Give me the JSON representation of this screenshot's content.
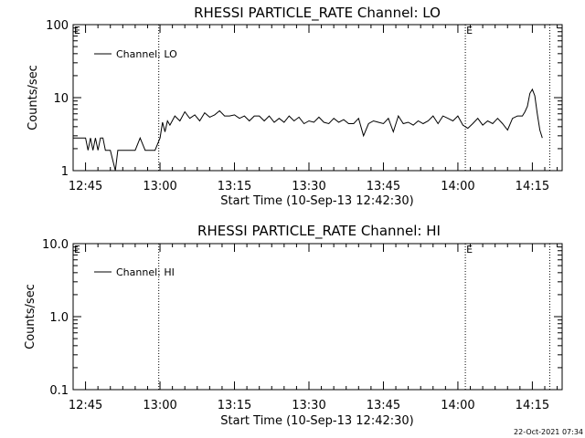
{
  "footer_date": "22-Oct-2021 07:34",
  "colors": {
    "background": "#ffffff",
    "ink": "#000000"
  },
  "chart_data": [
    {
      "type": "line",
      "title": "RHESSI PARTICLE_RATE Channel: LO",
      "xlabel": "Start Time (10-Sep-13 12:42:30)",
      "ylabel": "Counts/sec",
      "yscale": "log",
      "ylim": [
        1,
        100
      ],
      "xlim": [
        "12:42:30",
        "14:21:00"
      ],
      "xticks": [
        "12:45",
        "13:00",
        "13:15",
        "13:30",
        "13:45",
        "14:00",
        "14:15"
      ],
      "yticks": [
        "1",
        "10",
        "100"
      ],
      "legend_position": "top-left",
      "markers": [
        {
          "time": "12:42:30",
          "label": "E"
        },
        {
          "time": "12:59:45",
          "label": ""
        },
        {
          "time": "14:01:30",
          "label": "E"
        },
        {
          "time": "14:18:30",
          "label": ""
        }
      ],
      "series": [
        {
          "name": "Channel: LO",
          "x": [
            "12:42:30",
            "12:45:00",
            "12:45:30",
            "12:46:00",
            "12:46:30",
            "12:47:00",
            "12:47:30",
            "12:48:00",
            "12:48:30",
            "12:49:00",
            "12:50:00",
            "12:51:00",
            "12:51:30",
            "12:52:00",
            "12:52:30",
            "12:53:00",
            "12:54:00",
            "12:55:00",
            "12:56:00",
            "12:57:00",
            "12:58:00",
            "12:59:00",
            "13:00:00",
            "13:00:30",
            "13:01:00",
            "13:01:30",
            "13:02:00",
            "13:03:00",
            "13:04:00",
            "13:05:00",
            "13:06:00",
            "13:07:00",
            "13:08:00",
            "13:09:00",
            "13:10:00",
            "13:11:00",
            "13:12:00",
            "13:13:00",
            "13:14:00",
            "13:15:00",
            "13:16:00",
            "13:17:00",
            "13:18:00",
            "13:19:00",
            "13:20:00",
            "13:21:00",
            "13:22:00",
            "13:23:00",
            "13:24:00",
            "13:25:00",
            "13:26:00",
            "13:27:00",
            "13:28:00",
            "13:29:00",
            "13:30:00",
            "13:31:00",
            "13:32:00",
            "13:33:00",
            "13:34:00",
            "13:35:00",
            "13:36:00",
            "13:37:00",
            "13:38:00",
            "13:39:00",
            "13:40:00",
            "13:41:00",
            "13:42:00",
            "13:43:00",
            "13:44:00",
            "13:45:00",
            "13:46:00",
            "13:47:00",
            "13:48:00",
            "13:49:00",
            "13:50:00",
            "13:51:00",
            "13:52:00",
            "13:53:00",
            "13:54:00",
            "13:55:00",
            "13:56:00",
            "13:57:00",
            "13:58:00",
            "13:59:00",
            "14:00:00",
            "14:01:00",
            "14:02:00",
            "14:03:00",
            "14:04:00",
            "14:05:00",
            "14:06:00",
            "14:07:00",
            "14:08:00",
            "14:09:00",
            "14:10:00",
            "14:11:00",
            "14:12:00",
            "14:13:00",
            "14:13:30",
            "14:14:00",
            "14:14:30",
            "14:15:00",
            "14:15:30",
            "14:16:00",
            "14:16:30",
            "14:17:00"
          ],
          "values": [
            2.8,
            2.8,
            1.9,
            2.8,
            1.9,
            2.8,
            1.9,
            2.8,
            2.8,
            1.9,
            1.9,
            1.0,
            1.9,
            1.9,
            1.9,
            1.9,
            1.9,
            1.9,
            2.8,
            1.9,
            1.9,
            1.9,
            2.8,
            4.6,
            3.4,
            4.8,
            4.2,
            5.6,
            4.8,
            6.4,
            5.2,
            5.8,
            4.8,
            6.2,
            5.4,
            5.8,
            6.6,
            5.6,
            5.6,
            5.8,
            5.2,
            5.6,
            4.8,
            5.6,
            5.6,
            4.8,
            5.6,
            4.6,
            5.2,
            4.6,
            5.6,
            4.8,
            5.4,
            4.4,
            4.8,
            4.6,
            5.4,
            4.6,
            4.4,
            5.2,
            4.6,
            5.0,
            4.4,
            4.4,
            5.2,
            3.0,
            4.4,
            4.8,
            4.6,
            4.4,
            5.2,
            3.4,
            5.6,
            4.4,
            4.6,
            4.2,
            4.8,
            4.4,
            4.8,
            5.6,
            4.4,
            5.6,
            5.2,
            4.8,
            5.6,
            4.2,
            3.8,
            4.4,
            5.2,
            4.2,
            4.8,
            4.4,
            5.2,
            4.4,
            3.6,
            5.2,
            5.6,
            5.6,
            6.4,
            7.6,
            11.4,
            13.0,
            10.6,
            6.0,
            3.6,
            2.8
          ]
        }
      ]
    },
    {
      "type": "line",
      "title": "RHESSI PARTICLE_RATE Channel: HI",
      "xlabel": "Start Time (10-Sep-13 12:42:30)",
      "ylabel": "Counts/sec",
      "yscale": "log",
      "ylim": [
        0.1,
        10
      ],
      "xlim": [
        "12:42:30",
        "14:21:00"
      ],
      "xticks": [
        "12:45",
        "13:00",
        "13:15",
        "13:30",
        "13:45",
        "14:00",
        "14:15"
      ],
      "yticks": [
        "0.1",
        "1.0",
        "10.0"
      ],
      "legend_position": "top-left",
      "markers": [
        {
          "time": "12:42:30",
          "label": "E"
        },
        {
          "time": "12:59:45",
          "label": ""
        },
        {
          "time": "14:01:30",
          "label": "E"
        },
        {
          "time": "14:18:30",
          "label": ""
        }
      ],
      "series": [
        {
          "name": "Channel: HI",
          "x": [],
          "values": []
        }
      ]
    }
  ]
}
